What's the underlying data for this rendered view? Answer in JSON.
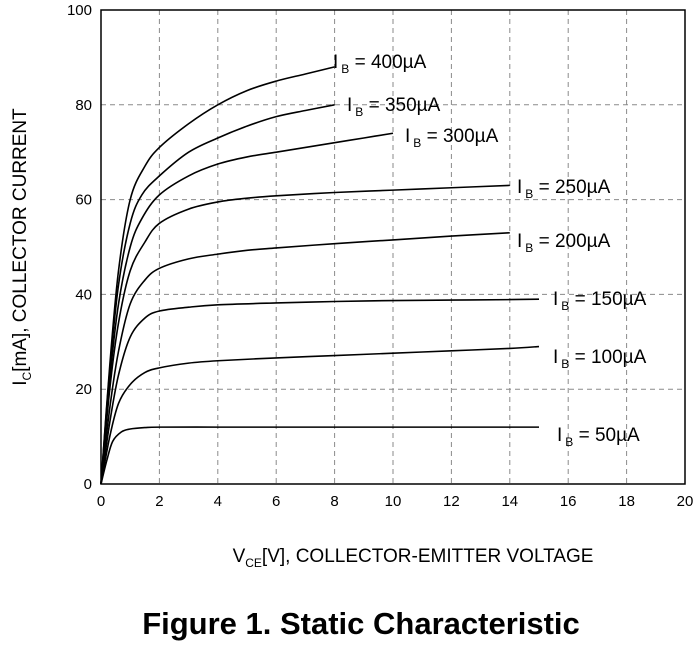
{
  "figure_title": "Figure 1. Static Characteristic",
  "chart_data": {
    "type": "line",
    "xlabel": {
      "main": "V",
      "sub": "CE",
      "rest": "[V], COLLECTOR-EMITTER VOLTAGE"
    },
    "ylabel": {
      "main": "I",
      "sub": "C",
      "rest": "[mA], COLLECTOR CURRENT"
    },
    "xlim": [
      0,
      20
    ],
    "ylim": [
      0,
      100
    ],
    "xticks": [
      "0",
      "2",
      "4",
      "6",
      "8",
      "10",
      "12",
      "14",
      "16",
      "18",
      "20"
    ],
    "yticks": [
      "0",
      "20",
      "40",
      "60",
      "80",
      "100"
    ],
    "grid": true,
    "series": [
      {
        "name": "I_B = 400µA",
        "label_main": "I",
        "label_sub": "B",
        "label_rest": " = 400µA",
        "x": [
          0,
          0.3,
          0.6,
          1.0,
          1.5,
          2,
          3,
          4,
          5,
          6,
          7,
          8
        ],
        "y": [
          0,
          25,
          45,
          60,
          67,
          71,
          76,
          80,
          83,
          85,
          86.5,
          88
        ]
      },
      {
        "name": "I_B = 350µA",
        "label_main": "I",
        "label_sub": "B",
        "label_rest": " = 350µA",
        "x": [
          0,
          0.3,
          0.6,
          1.0,
          1.4,
          2,
          3,
          4,
          5,
          6,
          7,
          8
        ],
        "y": [
          0,
          24,
          42,
          55,
          61,
          65,
          70,
          73,
          75.5,
          77.5,
          78.8,
          80
        ]
      },
      {
        "name": "I_B = 300µA",
        "label_main": "I",
        "label_sub": "B",
        "label_rest": " = 300µA",
        "x": [
          0,
          0.3,
          0.6,
          1.0,
          1.4,
          2,
          3,
          4,
          5,
          6,
          7,
          8,
          9,
          10
        ],
        "y": [
          0,
          22,
          38,
          50,
          56,
          61,
          65,
          67.5,
          69,
          70,
          71,
          72,
          73,
          74
        ]
      },
      {
        "name": "I_B = 250µA",
        "label_main": "I",
        "label_sub": "B",
        "label_rest": " = 250µA",
        "x": [
          0,
          0.3,
          0.6,
          1.0,
          1.5,
          2,
          3,
          4,
          5,
          6,
          8,
          10,
          12,
          14
        ],
        "y": [
          0,
          20,
          34,
          45,
          51,
          55,
          58,
          59.5,
          60.3,
          60.8,
          61.5,
          62,
          62.5,
          63
        ]
      },
      {
        "name": "I_B = 200µA",
        "label_main": "I",
        "label_sub": "B",
        "label_rest": " = 200µA",
        "x": [
          0,
          0.3,
          0.6,
          1.0,
          1.5,
          2,
          3,
          4,
          5,
          6,
          8,
          10,
          12,
          14
        ],
        "y": [
          0,
          16,
          28,
          38,
          43,
          45.5,
          47.5,
          48.5,
          49.3,
          49.8,
          50.7,
          51.5,
          52.3,
          53
        ]
      },
      {
        "name": "I_B = 150µA",
        "label_main": "I",
        "label_sub": "B",
        "label_rest": " = 150µA",
        "x": [
          0,
          0.3,
          0.6,
          1.0,
          1.5,
          2,
          3,
          4,
          6,
          8,
          10,
          12,
          14,
          15
        ],
        "y": [
          0,
          13,
          23,
          31,
          35,
          36.5,
          37.3,
          37.8,
          38.2,
          38.5,
          38.7,
          38.8,
          38.9,
          39
        ]
      },
      {
        "name": "I_B = 100µA",
        "label_main": "I",
        "label_sub": "B",
        "label_rest": " = 100µA",
        "x": [
          0,
          0.3,
          0.6,
          1.0,
          1.5,
          2,
          3,
          4,
          6,
          8,
          10,
          12,
          14,
          15
        ],
        "y": [
          0,
          10,
          17,
          21,
          23.5,
          24.5,
          25.5,
          26,
          26.6,
          27.1,
          27.6,
          28.1,
          28.6,
          29
        ]
      },
      {
        "name": "I_B = 50µA",
        "label_main": "I",
        "label_sub": "B",
        "label_rest": " = 50µA",
        "x": [
          0,
          0.2,
          0.4,
          0.7,
          1.0,
          1.5,
          2,
          4,
          6,
          8,
          10,
          12,
          14,
          15
        ],
        "y": [
          0,
          5,
          9,
          11,
          11.6,
          11.9,
          12,
          12,
          12,
          12,
          12,
          12,
          12,
          12
        ]
      }
    ]
  }
}
